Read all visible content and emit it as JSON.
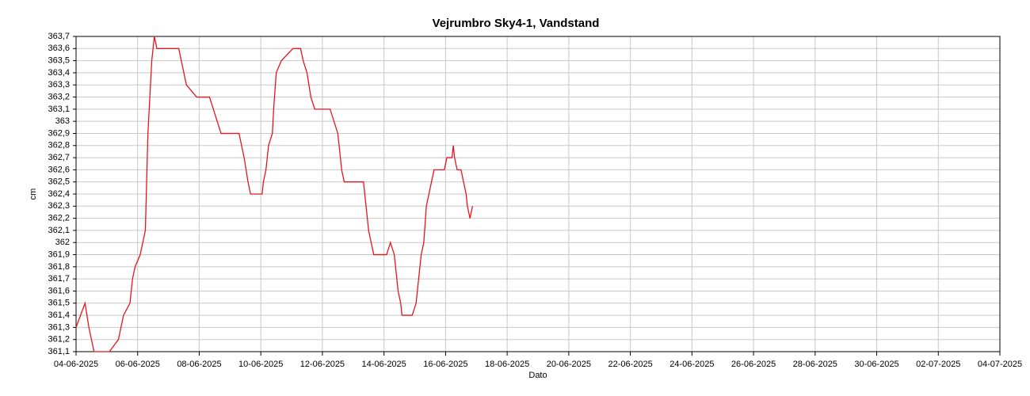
{
  "chart_data": {
    "type": "line",
    "title": "Vejrumbro Sky4-1, Vandstand",
    "x_label": "Dato",
    "y_label": "cm",
    "color": "#e8141c",
    "grid": true,
    "x": [
      "2025-06-04 00:00",
      "2025-06-04 07:00",
      "2025-06-04 10:00",
      "2025-06-04 14:00",
      "2025-06-05 02:00",
      "2025-06-05 09:00",
      "2025-06-05 11:00",
      "2025-06-05 13:00",
      "2025-06-05 18:00",
      "2025-06-05 20:00",
      "2025-06-05 22:00",
      "2025-06-06 02:00",
      "2025-06-06 06:00",
      "2025-06-06 07:00",
      "2025-06-06 08:00",
      "2025-06-06 09:00",
      "2025-06-06 10:00",
      "2025-06-06 11:00",
      "2025-06-06 13:00",
      "2025-06-06 15:00",
      "2025-06-07 08:00",
      "2025-06-07 12:00",
      "2025-06-07 14:00",
      "2025-06-07 22:00",
      "2025-06-08 08:00",
      "2025-06-08 11:00",
      "2025-06-08 14:00",
      "2025-06-08 17:00",
      "2025-06-09 07:00",
      "2025-06-09 09:00",
      "2025-06-09 11:00",
      "2025-06-09 14:00",
      "2025-06-09 16:00",
      "2025-06-10 01:00",
      "2025-06-10 02:00",
      "2025-06-10 04:00",
      "2025-06-10 06:00",
      "2025-06-10 09:00",
      "2025-06-10 10:00",
      "2025-06-10 12:00",
      "2025-06-10 16:00",
      "2025-06-11 01:00",
      "2025-06-11 07:00",
      "2025-06-11 09:00",
      "2025-06-11 12:00",
      "2025-06-11 15:00",
      "2025-06-11 18:00",
      "2025-06-12 06:00",
      "2025-06-12 09:00",
      "2025-06-12 12:00",
      "2025-06-12 14:00",
      "2025-06-12 15:00",
      "2025-06-12 17:00",
      "2025-06-13 08:00",
      "2025-06-13 09:00",
      "2025-06-13 10:00",
      "2025-06-13 12:00",
      "2025-06-13 14:00",
      "2025-06-13 16:00",
      "2025-06-14 02:00",
      "2025-06-14 05:00",
      "2025-06-14 08:00",
      "2025-06-14 09:00",
      "2025-06-14 11:00",
      "2025-06-14 13:00",
      "2025-06-14 14:00",
      "2025-06-14 22:00",
      "2025-06-15 01:00",
      "2025-06-15 02:00",
      "2025-06-15 05:00",
      "2025-06-15 07:00",
      "2025-06-15 09:00",
      "2025-06-15 11:00",
      "2025-06-15 13:00",
      "2025-06-15 15:00",
      "2025-06-15 23:00",
      "2025-06-16 01:00",
      "2025-06-16 05:00",
      "2025-06-16 06:00",
      "2025-06-16 07:00",
      "2025-06-16 09:00",
      "2025-06-16 12:00",
      "2025-06-16 14:00",
      "2025-06-16 16:00",
      "2025-06-16 17:00",
      "2025-06-16 19:00",
      "2025-06-16 21:00"
    ],
    "values": [
      361.3,
      361.5,
      361.3,
      361.1,
      361.1,
      361.2,
      361.3,
      361.4,
      361.5,
      361.7,
      361.8,
      361.9,
      362.1,
      362.5,
      362.9,
      363.1,
      363.3,
      363.5,
      363.7,
      363.6,
      363.6,
      363.4,
      363.3,
      363.2,
      363.2,
      363.1,
      363.0,
      362.9,
      362.9,
      362.8,
      362.7,
      362.5,
      362.4,
      362.4,
      362.5,
      362.6,
      362.8,
      362.9,
      363.1,
      363.4,
      363.5,
      363.6,
      363.6,
      363.5,
      363.4,
      363.2,
      363.1,
      363.1,
      363.0,
      362.9,
      362.7,
      362.6,
      362.5,
      362.5,
      362.4,
      362.3,
      362.1,
      362.0,
      361.9,
      361.9,
      362.0,
      361.9,
      361.8,
      361.6,
      361.5,
      361.4,
      361.4,
      361.5,
      361.6,
      361.9,
      362.0,
      362.3,
      362.4,
      362.5,
      362.6,
      362.6,
      362.7,
      362.7,
      362.8,
      362.7,
      362.6,
      362.6,
      362.5,
      362.4,
      362.3,
      362.2,
      362.3
    ],
    "xlim": [
      "2025-06-04",
      "2025-07-04"
    ],
    "xticks": [
      {
        "value": "2025-06-04",
        "label": "04-06-2025"
      },
      {
        "value": "2025-06-06",
        "label": "06-06-2025"
      },
      {
        "value": "2025-06-08",
        "label": "08-06-2025"
      },
      {
        "value": "2025-06-10",
        "label": "10-06-2025"
      },
      {
        "value": "2025-06-12",
        "label": "12-06-2025"
      },
      {
        "value": "2025-06-14",
        "label": "14-06-2025"
      },
      {
        "value": "2025-06-16",
        "label": "16-06-2025"
      },
      {
        "value": "2025-06-18",
        "label": "18-06-2025"
      },
      {
        "value": "2025-06-20",
        "label": "20-06-2025"
      },
      {
        "value": "2025-06-22",
        "label": "22-06-2025"
      },
      {
        "value": "2025-06-24",
        "label": "24-06-2025"
      },
      {
        "value": "2025-06-26",
        "label": "26-06-2025"
      },
      {
        "value": "2025-06-28",
        "label": "28-06-2025"
      },
      {
        "value": "2025-06-30",
        "label": "30-06-2025"
      },
      {
        "value": "2025-07-02",
        "label": "02-07-2025"
      },
      {
        "value": "2025-07-04",
        "label": "04-07-2025"
      }
    ],
    "ylim": [
      361.1,
      363.7
    ],
    "yticks": [
      {
        "value": 361.1,
        "label": "361,1"
      },
      {
        "value": 361.2,
        "label": "361,2"
      },
      {
        "value": 361.3,
        "label": "361,3"
      },
      {
        "value": 361.4,
        "label": "361,4"
      },
      {
        "value": 361.5,
        "label": "361,5"
      },
      {
        "value": 361.6,
        "label": "361,6"
      },
      {
        "value": 361.7,
        "label": "361,7"
      },
      {
        "value": 361.8,
        "label": "361,8"
      },
      {
        "value": 361.9,
        "label": "361,9"
      },
      362,
      {
        "value": 362.1,
        "label": "362,1"
      },
      {
        "value": 362.2,
        "label": "362,2"
      },
      {
        "value": 362.3,
        "label": "362,3"
      },
      {
        "value": 362.4,
        "label": "362,4"
      },
      {
        "value": 362.5,
        "label": "362,5"
      },
      {
        "value": 362.6,
        "label": "362,6"
      },
      {
        "value": 362.7,
        "label": "362,7"
      },
      {
        "value": 362.8,
        "label": "362,8"
      },
      {
        "value": 362.9,
        "label": "362,9"
      },
      363,
      {
        "value": 363.1,
        "label": "363,1"
      },
      {
        "value": 363.2,
        "label": "363,2"
      },
      {
        "value": 363.3,
        "label": "363,3"
      },
      {
        "value": 363.4,
        "label": "363,4"
      },
      {
        "value": 363.5,
        "label": "363,5"
      },
      {
        "value": 363.6,
        "label": "363,6"
      },
      {
        "value": 363.7,
        "label": "363,7"
      }
    ]
  }
}
